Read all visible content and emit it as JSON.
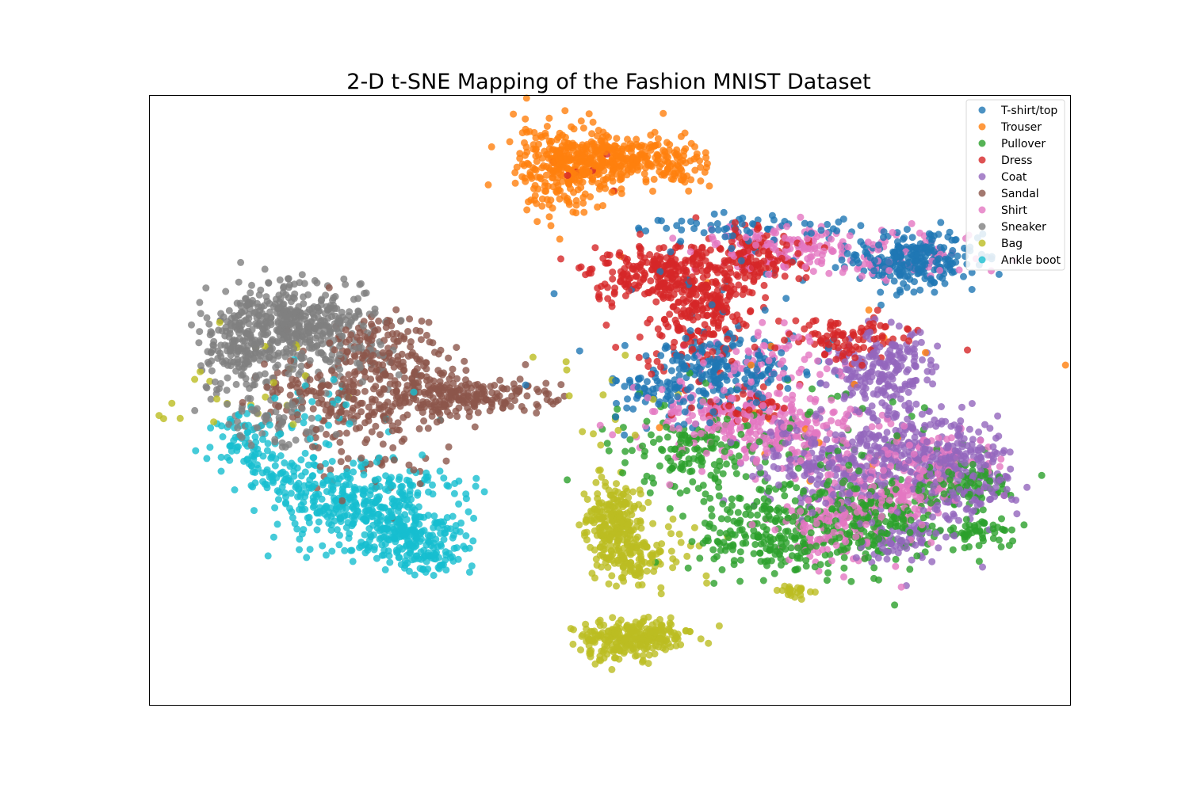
{
  "chart_data": {
    "type": "scatter",
    "title": "2-D t-SNE Mapping of the Fashion MNIST Dataset",
    "xlabel": "",
    "ylabel": "",
    "axis_ticks": false,
    "grid": false,
    "legend_position": "top-right",
    "xlim": [
      0,
      100
    ],
    "ylim": [
      0,
      100
    ],
    "series": [
      {
        "name": "T-shirt/top",
        "color": "#1f77b4",
        "blobs": [
          {
            "x": 82.5,
            "y": 73,
            "sx": 3.4,
            "sy": 2.2,
            "n": 260
          },
          {
            "x": 64,
            "y": 78,
            "sx": 7,
            "sy": 1.3,
            "n": 60
          },
          {
            "x": 61,
            "y": 55,
            "sx": 5,
            "sy": 3,
            "n": 230
          },
          {
            "x": 55,
            "y": 51,
            "sx": 3,
            "sy": 2,
            "n": 50
          },
          {
            "x": 62,
            "y": 69,
            "sx": 10,
            "sy": 5,
            "n": 25
          }
        ]
      },
      {
        "name": "Trouser",
        "color": "#ff7f0e",
        "blobs": [
          {
            "x": 45,
            "y": 88,
            "sx": 2.6,
            "sy": 3.6,
            "n": 240
          },
          {
            "x": 50.5,
            "y": 89.5,
            "sx": 4,
            "sy": 2.2,
            "n": 260
          },
          {
            "x": 57.5,
            "y": 88.5,
            "sx": 2,
            "sy": 1.6,
            "n": 60
          },
          {
            "x": 72,
            "y": 45,
            "sx": 14,
            "sy": 10,
            "n": 18
          }
        ]
      },
      {
        "name": "Pullover",
        "color": "#2ca02c",
        "blobs": [
          {
            "x": 68.5,
            "y": 28,
            "sx": 4.5,
            "sy": 4,
            "n": 230
          },
          {
            "x": 79,
            "y": 30,
            "sx": 3.5,
            "sy": 3.5,
            "n": 180
          },
          {
            "x": 88.5,
            "y": 36,
            "sx": 2.2,
            "sy": 2,
            "n": 90
          },
          {
            "x": 90.5,
            "y": 28,
            "sx": 1.8,
            "sy": 1.5,
            "n": 50
          },
          {
            "x": 59,
            "y": 42,
            "sx": 4,
            "sy": 3,
            "n": 120
          },
          {
            "x": 71,
            "y": 38,
            "sx": 9,
            "sy": 7,
            "n": 140
          }
        ]
      },
      {
        "name": "Dress",
        "color": "#d62728",
        "blobs": [
          {
            "x": 55,
            "y": 71,
            "sx": 3.5,
            "sy": 2.4,
            "n": 220
          },
          {
            "x": 60.5,
            "y": 66,
            "sx": 3,
            "sy": 3,
            "n": 180
          },
          {
            "x": 65.5,
            "y": 73.5,
            "sx": 2.6,
            "sy": 2,
            "n": 150
          },
          {
            "x": 76,
            "y": 60,
            "sx": 3,
            "sy": 2,
            "n": 100
          },
          {
            "x": 65,
            "y": 49,
            "sx": 3,
            "sy": 1.6,
            "n": 50
          },
          {
            "x": 58,
            "y": 59,
            "sx": 4,
            "sy": 2.5,
            "n": 60
          },
          {
            "x": 47,
            "y": 86,
            "sx": 2,
            "sy": 3,
            "n": 6
          }
        ]
      },
      {
        "name": "Coat",
        "color": "#9467bd",
        "blobs": [
          {
            "x": 79.5,
            "y": 55,
            "sx": 2.8,
            "sy": 3.2,
            "n": 200
          },
          {
            "x": 83,
            "y": 42,
            "sx": 3.6,
            "sy": 4,
            "n": 220
          },
          {
            "x": 88.5,
            "y": 37,
            "sx": 2.6,
            "sy": 3.2,
            "n": 160
          },
          {
            "x": 74,
            "y": 38,
            "sx": 3.5,
            "sy": 3,
            "n": 140
          },
          {
            "x": 82,
            "y": 28,
            "sx": 3,
            "sy": 2.5,
            "n": 90
          },
          {
            "x": 70,
            "y": 43,
            "sx": 4,
            "sy": 3,
            "n": 60
          }
        ]
      },
      {
        "name": "Sandal",
        "color": "#8c564b",
        "blobs": [
          {
            "x": 25.5,
            "y": 57,
            "sx": 3,
            "sy": 3.2,
            "n": 170
          },
          {
            "x": 30,
            "y": 51,
            "sx": 2.5,
            "sy": 2,
            "n": 60
          },
          {
            "x": 35,
            "y": 50.5,
            "sx": 4.2,
            "sy": 1.6,
            "n": 180
          },
          {
            "x": 23,
            "y": 48,
            "sx": 3,
            "sy": 2.5,
            "n": 90
          },
          {
            "x": 17,
            "y": 52,
            "sx": 3.5,
            "sy": 2.5,
            "n": 70
          },
          {
            "x": 24,
            "y": 40,
            "sx": 4,
            "sy": 3,
            "n": 40
          }
        ]
      },
      {
        "name": "Shirt",
        "color": "#e377c2",
        "blobs": [
          {
            "x": 69,
            "y": 45,
            "sx": 5.5,
            "sy": 3.2,
            "n": 180
          },
          {
            "x": 80.5,
            "y": 35,
            "sx": 3,
            "sy": 3,
            "n": 160
          },
          {
            "x": 74,
            "y": 29,
            "sx": 3,
            "sy": 3.2,
            "n": 140
          },
          {
            "x": 63,
            "y": 47,
            "sx": 5,
            "sy": 3,
            "n": 140
          },
          {
            "x": 69,
            "y": 75,
            "sx": 5,
            "sy": 2,
            "n": 110
          },
          {
            "x": 80,
            "y": 74,
            "sx": 5,
            "sy": 2,
            "n": 80
          },
          {
            "x": 67,
            "y": 57,
            "sx": 4,
            "sy": 3,
            "n": 70
          },
          {
            "x": 87,
            "y": 40,
            "sx": 3,
            "sy": 3,
            "n": 60
          }
        ]
      },
      {
        "name": "Sneaker",
        "color": "#7f7f7f",
        "blobs": [
          {
            "x": 14.5,
            "y": 62.5,
            "sx": 3.4,
            "sy": 3.2,
            "n": 340
          },
          {
            "x": 10,
            "y": 57.5,
            "sx": 2,
            "sy": 3.5,
            "n": 120
          },
          {
            "x": 20,
            "y": 63,
            "sx": 3.5,
            "sy": 2.5,
            "n": 90
          },
          {
            "x": 14,
            "y": 46.5,
            "sx": 3,
            "sy": 2,
            "n": 70
          },
          {
            "x": 19,
            "y": 56,
            "sx": 5,
            "sy": 3,
            "n": 70
          }
        ]
      },
      {
        "name": "Bag",
        "color": "#bcbd22",
        "blobs": [
          {
            "x": 50.2,
            "y": 31,
            "sx": 1.6,
            "sy": 3,
            "n": 180
          },
          {
            "x": 52,
            "y": 25,
            "sx": 2,
            "sy": 2.8,
            "n": 140
          },
          {
            "x": 51,
            "y": 10.5,
            "sx": 2.2,
            "sy": 1.6,
            "n": 170
          },
          {
            "x": 55.3,
            "y": 11.5,
            "sx": 2,
            "sy": 1.2,
            "n": 110
          },
          {
            "x": 70,
            "y": 18.5,
            "sx": 0.9,
            "sy": 0.6,
            "n": 25
          },
          {
            "x": 56,
            "y": 26,
            "sx": 3,
            "sy": 4,
            "n": 30
          },
          {
            "x": 13,
            "y": 52,
            "sx": 5,
            "sy": 5,
            "n": 25
          },
          {
            "x": 50,
            "y": 53,
            "sx": 4,
            "sy": 6,
            "n": 15
          }
        ]
      },
      {
        "name": "Ankle boot",
        "color": "#17becf",
        "blobs": [
          {
            "x": 23,
            "y": 33,
            "sx": 4.5,
            "sy": 3.2,
            "n": 280
          },
          {
            "x": 27.5,
            "y": 27.5,
            "sx": 3,
            "sy": 2.5,
            "n": 200
          },
          {
            "x": 15.5,
            "y": 37,
            "sx": 2.5,
            "sy": 2,
            "n": 80
          },
          {
            "x": 10.5,
            "y": 43,
            "sx": 2,
            "sy": 2,
            "n": 70
          },
          {
            "x": 31,
            "y": 24,
            "sx": 1.8,
            "sy": 1.4,
            "n": 40
          },
          {
            "x": 30,
            "y": 36,
            "sx": 2,
            "sy": 1,
            "n": 20
          },
          {
            "x": 18,
            "y": 48,
            "sx": 4,
            "sy": 4,
            "n": 30
          }
        ]
      }
    ]
  }
}
